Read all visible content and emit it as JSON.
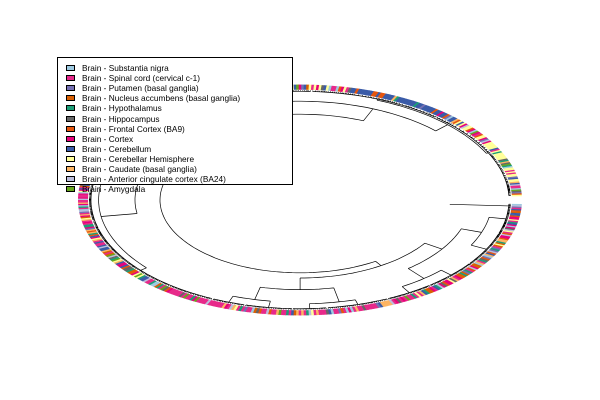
{
  "chart_data": {
    "type": "circular-dendrogram",
    "title": "",
    "legend_placement": "top-left",
    "tissues": [
      {
        "name": "Brain - Substantia nigra",
        "color": "#9ecae1"
      },
      {
        "name": "Brain - Spinal cord (cervical c-1)",
        "color": "#e7298a"
      },
      {
        "name": "Brain - Putamen (basal ganglia)",
        "color": "#7570b3"
      },
      {
        "name": "Brain - Nucleus accumbens (basal ganglia)",
        "color": "#d95f02"
      },
      {
        "name": "Brain - Hypothalamus",
        "color": "#1b9e77"
      },
      {
        "name": "Brain - Hippocampus",
        "color": "#666666"
      },
      {
        "name": "Brain - Frontal Cortex (BA9)",
        "color": "#e6550d"
      },
      {
        "name": "Brain - Cortex",
        "color": "#e7007a"
      },
      {
        "name": "Brain - Cerebellum",
        "color": "#3a5ba8"
      },
      {
        "name": "Brain - Cerebellar Hemisphere",
        "color": "#ffff99"
      },
      {
        "name": "Brain - Caudate (basal ganglia)",
        "color": "#fdb462"
      },
      {
        "name": "Brain - Anterior cingulate cortex (BA24)",
        "color": "#bcbddc"
      },
      {
        "name": "Brain - Amygdala",
        "color": "#66a61e"
      }
    ]
  }
}
